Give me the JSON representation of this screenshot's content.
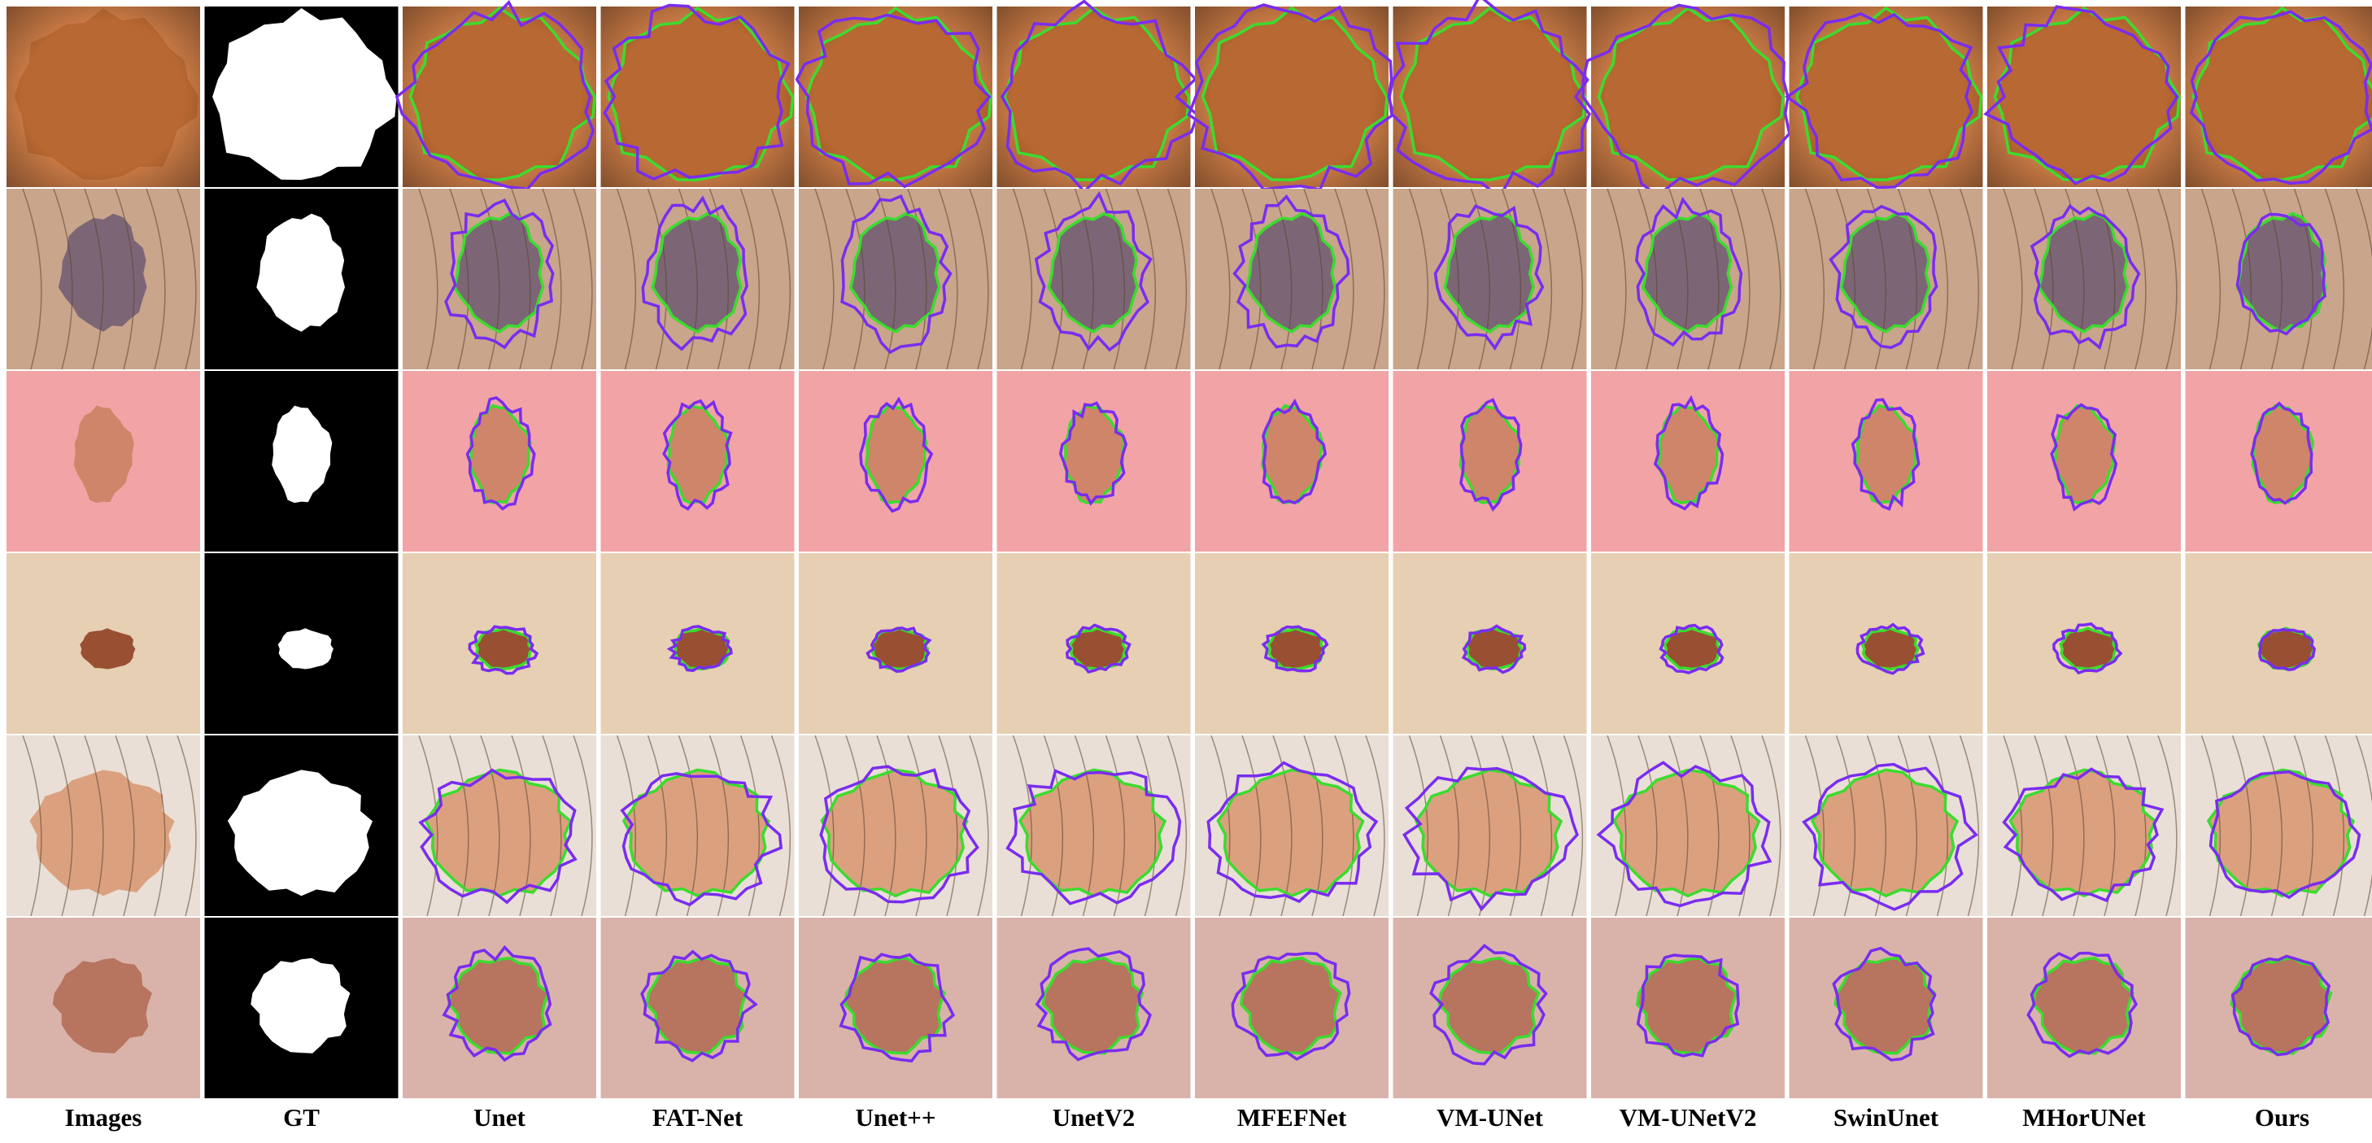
{
  "figure": {
    "columns": [
      {
        "label": "Images",
        "kind": "image"
      },
      {
        "label": "GT",
        "kind": "mask"
      },
      {
        "label": "Unet",
        "kind": "overlay"
      },
      {
        "label": "FAT-Net",
        "kind": "overlay"
      },
      {
        "label": "Unet++",
        "kind": "overlay"
      },
      {
        "label": "UnetV2",
        "kind": "overlay"
      },
      {
        "label": "MFEFNet",
        "kind": "overlay"
      },
      {
        "label": "VM-UNet",
        "kind": "overlay"
      },
      {
        "label": "VM-UNetV2",
        "kind": "overlay"
      },
      {
        "label": "SwinUnet",
        "kind": "overlay"
      },
      {
        "label": "MHorUNet",
        "kind": "overlay"
      },
      {
        "label": "Ours",
        "kind": "overlay"
      }
    ],
    "rows": [
      {
        "skin": "#c97a45",
        "lesion": "#b5652f",
        "style": "large-orange"
      },
      {
        "skin": "#c9a58c",
        "lesion": "#6e5a72",
        "style": "hairy-dark"
      },
      {
        "skin": "#f2a3a6",
        "lesion": "#c9805e",
        "style": "pink-small"
      },
      {
        "skin": "#e7cfb3",
        "lesion": "#8b3a1b",
        "style": "tiny-dark"
      },
      {
        "skin": "#e9dfd6",
        "lesion": "#d89770",
        "style": "hairy-light"
      },
      {
        "skin": "#d9b3aa",
        "lesion": "#b06852",
        "style": "pale-spotted"
      }
    ],
    "colors": {
      "ground_truth_contour": "#3bdc2e",
      "prediction_contour": "#7a2cf0",
      "mask_background": "#000000",
      "mask_foreground": "#ffffff"
    }
  }
}
